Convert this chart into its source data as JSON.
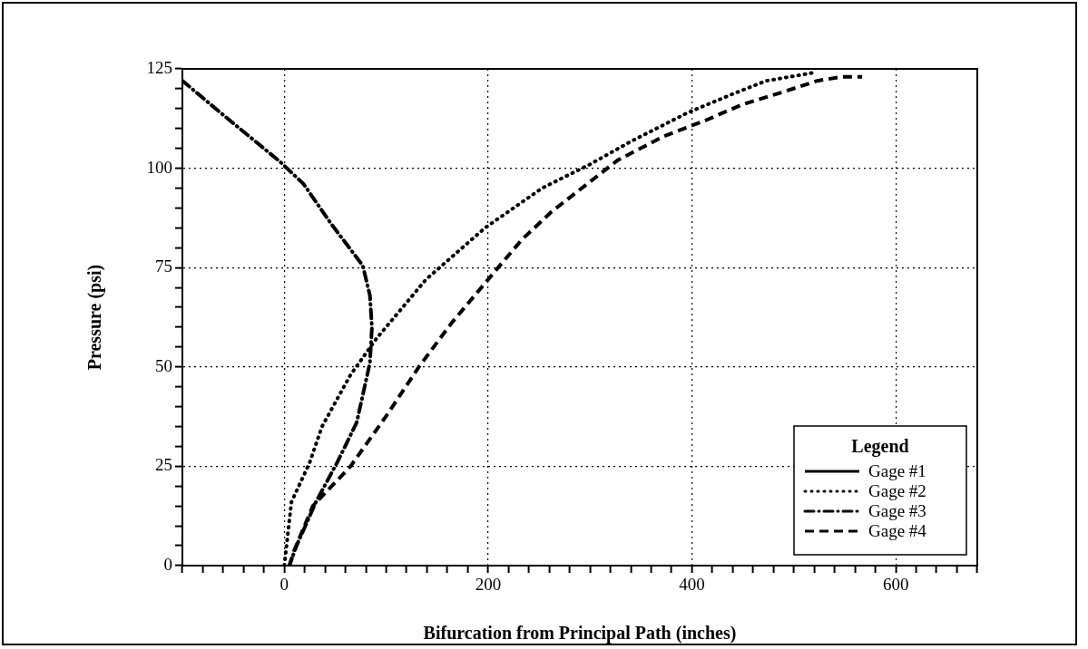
{
  "chart_data": {
    "type": "line",
    "xlabel": "Bifurcation from Principal Path (inches)",
    "ylabel": "Pressure (psi)",
    "legend_title": "Legend",
    "legend": "bottom right",
    "grid": true,
    "marker": "none",
    "xlim": [
      -100,
      680
    ],
    "ylim": [
      0,
      125
    ],
    "xticks": [
      {
        "value": -100,
        "label": null
      },
      {
        "value": -80,
        "label": null
      },
      {
        "value": -60,
        "label": null
      },
      {
        "value": -40,
        "label": null
      },
      {
        "value": -20,
        "label": null
      },
      0,
      {
        "value": 20,
        "label": null
      },
      {
        "value": 40,
        "label": null
      },
      {
        "value": 60,
        "label": null
      },
      {
        "value": 80,
        "label": null
      },
      {
        "value": 100,
        "label": null
      },
      {
        "value": 120,
        "label": null
      },
      {
        "value": 140,
        "label": null
      },
      {
        "value": 160,
        "label": null
      },
      {
        "value": 180,
        "label": null
      },
      200,
      {
        "value": 220,
        "label": null
      },
      {
        "value": 240,
        "label": null
      },
      {
        "value": 260,
        "label": null
      },
      {
        "value": 280,
        "label": null
      },
      {
        "value": 300,
        "label": null
      },
      {
        "value": 320,
        "label": null
      },
      {
        "value": 340,
        "label": null
      },
      {
        "value": 360,
        "label": null
      },
      {
        "value": 380,
        "label": null
      },
      400,
      {
        "value": 420,
        "label": null
      },
      {
        "value": 440,
        "label": null
      },
      {
        "value": 460,
        "label": null
      },
      {
        "value": 480,
        "label": null
      },
      {
        "value": 500,
        "label": null
      },
      {
        "value": 520,
        "label": null
      },
      {
        "value": 540,
        "label": null
      },
      {
        "value": 560,
        "label": null
      },
      {
        "value": 580,
        "label": null
      },
      600,
      {
        "value": 620,
        "label": null
      },
      {
        "value": 640,
        "label": null
      },
      {
        "value": 660,
        "label": null
      },
      {
        "value": 680,
        "label": null
      }
    ],
    "yticks": [
      0,
      {
        "value": 5,
        "label": null
      },
      {
        "value": 10,
        "label": null
      },
      {
        "value": 15,
        "label": null
      },
      {
        "value": 20,
        "label": null
      },
      25,
      {
        "value": 30,
        "label": null
      },
      {
        "value": 35,
        "label": null
      },
      {
        "value": 40,
        "label": null
      },
      {
        "value": 45,
        "label": null
      },
      50,
      {
        "value": 55,
        "label": null
      },
      {
        "value": 60,
        "label": null
      },
      {
        "value": 65,
        "label": null
      },
      {
        "value": 70,
        "label": null
      },
      75,
      {
        "value": 80,
        "label": null
      },
      {
        "value": 85,
        "label": null
      },
      {
        "value": 90,
        "label": null
      },
      {
        "value": 95,
        "label": null
      },
      100,
      {
        "value": 105,
        "label": null
      },
      {
        "value": 110,
        "label": null
      },
      {
        "value": 115,
        "label": null
      },
      {
        "value": 120,
        "label": null
      },
      125
    ],
    "series": [
      {
        "name": "Gage #1",
        "color": "#000000",
        "line_style": "solid"
      },
      {
        "name": "Gage #2",
        "color": "#000000",
        "line_style": "dotted",
        "x": [
          0,
          7,
          25,
          37,
          65,
          90,
          139,
          197,
          253,
          300,
          342,
          396,
          443,
          473,
          496,
          518
        ],
        "values": [
          0,
          16,
          26,
          35,
          48,
          57,
          72,
          85,
          95,
          101,
          107,
          114,
          119,
          122,
          123,
          124
        ]
      },
      {
        "name": "Gage #3",
        "color": "#000000",
        "line_style": "dashdot",
        "x": [
          -100,
          -58,
          -4,
          19,
          46,
          77,
          84,
          86,
          84,
          71,
          52,
          31,
          12,
          5
        ],
        "values": [
          122,
          113,
          101.6,
          96,
          86,
          75.5,
          68,
          60,
          51,
          36,
          26,
          16,
          5,
          0
        ]
      },
      {
        "name": "Gage #4",
        "color": "#000000",
        "line_style": "dashed",
        "x": [
          5,
          10,
          28,
          65,
          101,
          132,
          164,
          200,
          233,
          262,
          292,
          327,
          372,
          413,
          449,
          487,
          523,
          547,
          567
        ],
        "values": [
          0,
          4,
          15,
          25,
          38,
          50,
          61,
          72,
          82,
          89,
          95,
          102,
          108,
          112,
          116,
          119,
          122,
          123,
          123
        ]
      }
    ]
  }
}
